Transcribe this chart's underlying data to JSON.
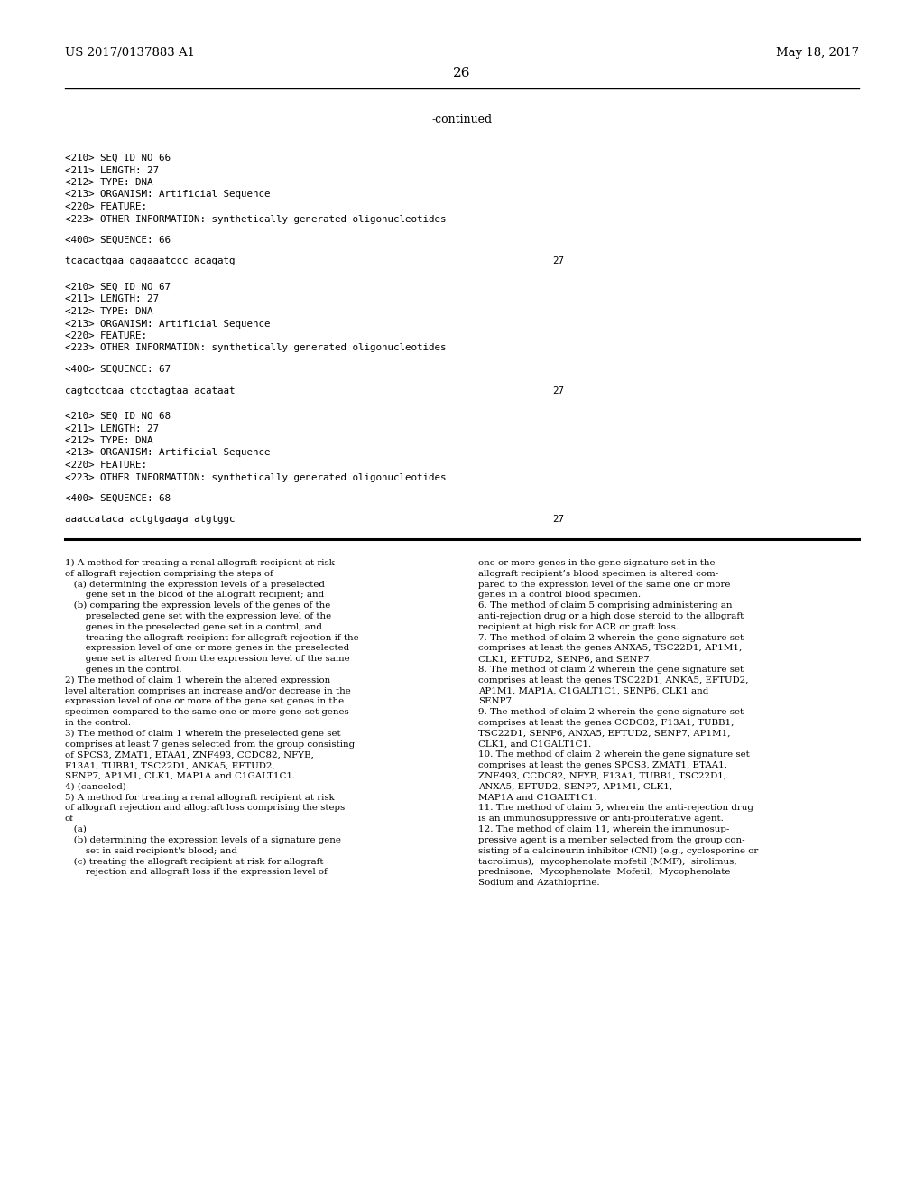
{
  "bg_color": "#ffffff",
  "text_color": "#000000",
  "header_left": "US 2017/0137883 A1",
  "header_right": "May 18, 2017",
  "page_number": "26",
  "continued_text": "-continued",
  "seq_blocks": [
    {
      "meta_lines": [
        "<210> SEQ ID NO 66",
        "<211> LENGTH: 27",
        "<212> TYPE: DNA",
        "<213> ORGANISM: Artificial Sequence",
        "<220> FEATURE:",
        "<223> OTHER INFORMATION: synthetically generated oligonucleotides"
      ],
      "seq_label": "<400> SEQUENCE: 66",
      "sequence": "tcacactgaa gagaaatccc acagatg",
      "seq_length": "27"
    },
    {
      "meta_lines": [
        "<210> SEQ ID NO 67",
        "<211> LENGTH: 27",
        "<212> TYPE: DNA",
        "<213> ORGANISM: Artificial Sequence",
        "<220> FEATURE:",
        "<223> OTHER INFORMATION: synthetically generated oligonucleotides"
      ],
      "seq_label": "<400> SEQUENCE: 67",
      "sequence": "cagtcctcaa ctcctagtaa acataat",
      "seq_length": "27"
    },
    {
      "meta_lines": [
        "<210> SEQ ID NO 68",
        "<211> LENGTH: 27",
        "<212> TYPE: DNA",
        "<213> ORGANISM: Artificial Sequence",
        "<220> FEATURE:",
        "<223> OTHER INFORMATION: synthetically generated oligonucleotides"
      ],
      "seq_label": "<400> SEQUENCE: 68",
      "sequence": "aaaccataca actgtgaaga atgtggc",
      "seq_length": "27"
    }
  ],
  "claims_col1": [
    [
      "bold",
      "1) ",
      "A method for treating a renal allograft recipient at risk"
    ],
    [
      "normal",
      "",
      "of allograft rejection comprising the steps of"
    ],
    [
      "normal",
      "   ",
      "(a) determining the expression levels of a preselected"
    ],
    [
      "normal",
      "       ",
      "gene set in the blood of the allograft recipient; and"
    ],
    [
      "normal",
      "   ",
      "(b) comparing the expression levels of the genes of the"
    ],
    [
      "normal",
      "       ",
      "preselected gene set with the expression level of the"
    ],
    [
      "normal",
      "       ",
      "genes in the preselected gene set in a control, and"
    ],
    [
      "normal",
      "       ",
      "treating the allograft recipient for allograft rejection if the"
    ],
    [
      "normal",
      "       ",
      "expression level of one or more genes in the preselected"
    ],
    [
      "normal",
      "       ",
      "gene set is altered from the expression level of the same"
    ],
    [
      "normal",
      "       ",
      "genes in the control."
    ],
    [
      "bold",
      "2)",
      " The method of claim 1 wherein the altered expression"
    ],
    [
      "normal",
      "",
      "level alteration comprises an increase and/or decrease in the"
    ],
    [
      "normal",
      "",
      "expression level of one or more of the gene set genes in the"
    ],
    [
      "normal",
      "",
      "specimen compared to the same one or more gene set genes"
    ],
    [
      "normal",
      "",
      "in the control."
    ],
    [
      "bold",
      "3)",
      " The method of claim 1 wherein the preselected gene set"
    ],
    [
      "normal",
      "",
      "comprises at least 7 genes selected from the group consisting"
    ],
    [
      "normal",
      "",
      "of SPCS3, ZMAT1, ETAA1, ZNF493, CCDC82, NFYB,"
    ],
    [
      "normal",
      "",
      "F13A1, TUBB1, TSC22D1, ANKA5, EFTUD2,"
    ],
    [
      "normal",
      "",
      "SENP7, AP1M1, CLK1, MAP1A and C1GALT1C1."
    ],
    [
      "bold",
      "4)",
      " (canceled)"
    ],
    [
      "bold",
      "5)",
      " A method for treating a renal allograft recipient at risk"
    ],
    [
      "normal",
      "",
      "of allograft rejection and allograft loss comprising the steps"
    ],
    [
      "normal",
      "",
      "of"
    ],
    [
      "normal",
      "   ",
      "(a)"
    ],
    [
      "normal",
      "   ",
      "(b) determining the expression levels of a signature gene"
    ],
    [
      "normal",
      "       ",
      "set in said recipient's blood; and"
    ],
    [
      "normal",
      "   ",
      "(c) treating the allograft recipient at risk for allograft"
    ],
    [
      "normal",
      "       ",
      "rejection and allograft loss if the expression level of"
    ]
  ],
  "claims_col2": [
    "one or more genes in the gene signature set in the",
    "allograft recipient’s blood specimen is altered com-",
    "pared to the expression level of the same one or more",
    "genes in a control blood specimen.",
    "6. The method of claim 5 comprising administering an",
    "anti-rejection drug or a high dose steroid to the allograft",
    "recipient at high risk for ACR or graft loss.",
    "7. The method of claim 2 wherein the gene signature set",
    "comprises at least the genes ANXA5, TSC22D1, AP1M1,",
    "CLK1, EFTUD2, SENP6, and SENP7.",
    "8. The method of claim 2 wherein the gene signature set",
    "comprises at least the genes TSC22D1, ANKA5, EFTUD2,",
    "AP1M1, MAP1A, C1GALT1C1, SENP6, CLK1 and",
    "SENP7.",
    "9. The method of claim 2 wherein the gene signature set",
    "comprises at least the genes CCDC82, F13A1, TUBB1,",
    "TSC22D1, SENP6, ANXA5, EFTUD2, SENP7, AP1M1,",
    "CLK1, and C1GALT1C1.",
    "10. The method of claim 2 wherein the gene signature set",
    "comprises at least the genes SPCS3, ZMAT1, ETAA1,",
    "ZNF493, CCDC82, NFYB, F13A1, TUBB1, TSC22D1,",
    "ANXA5, EFTUD2, SENP7, AP1M1, CLK1,",
    "MAP1A and C1GALT1C1.",
    "11. The method of claim 5, wherein the anti-rejection drug",
    "is an immunosuppressive or anti-proliferative agent.",
    "12. The method of claim 11, wherein the immunosup-",
    "pressive agent is a member selected from the group con-",
    "sisting of a calcineurin inhibitor (CNI) (e.g., cyclosporine or",
    "tacrolimus),  mycophenolate mofetil (MMF),  sirolimus,",
    "prednisone,  Mycophenolate  Mofetil,  Mycophenolate",
    "Sodium and Azathioprine."
  ]
}
